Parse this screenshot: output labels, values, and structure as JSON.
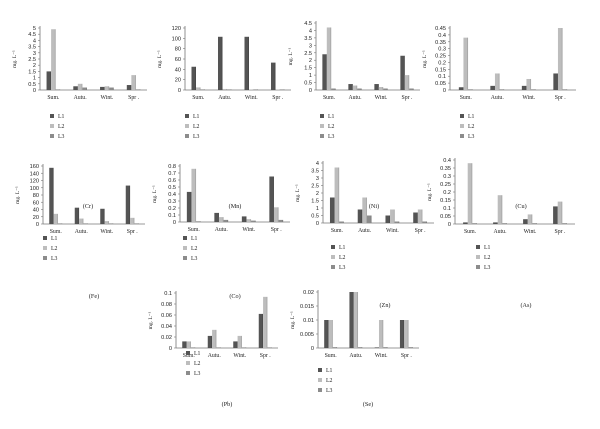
{
  "colors": {
    "L1": "#545454",
    "L2": "#bdbdbd",
    "L3": "#8c8c8c",
    "axis": "#777777",
    "text": "#222222"
  },
  "legend_labels": [
    "L1",
    "L2",
    "L3"
  ],
  "chart_data": [
    {
      "type": "bar",
      "title": "(Cr)",
      "ylabel": "mg. L⁻¹",
      "categories": [
        "Sum.",
        "Autu.",
        "Wint.",
        "Spr ."
      ],
      "ylim": [
        0,
        5
      ],
      "yticks": [
        0,
        0.5,
        1,
        1.5,
        2,
        2.5,
        3,
        3.5,
        4,
        4.5,
        5
      ],
      "series": [
        {
          "name": "L1",
          "values": [
            1.5,
            0.3,
            0.25,
            0.4
          ]
        },
        {
          "name": "L2",
          "values": [
            4.9,
            0.5,
            0.3,
            1.2
          ]
        },
        {
          "name": "L3",
          "values": [
            0.02,
            0.2,
            0.2,
            0.05
          ]
        }
      ]
    },
    {
      "type": "bar",
      "title": "(Mn)",
      "ylabel": "mg. L⁻¹",
      "categories": [
        "Sum.",
        "Autu.",
        "Wint.",
        "Spr ."
      ],
      "ylim": [
        0,
        120
      ],
      "yticks": [
        0,
        20,
        40,
        60,
        80,
        100,
        120
      ],
      "series": [
        {
          "name": "L1",
          "values": [
            45,
            103,
            103,
            53
          ]
        },
        {
          "name": "L2",
          "values": [
            5,
            2,
            1,
            1
          ]
        },
        {
          "name": "L3",
          "values": [
            0.5,
            0.3,
            0.3,
            0.3
          ]
        }
      ]
    },
    {
      "type": "bar",
      "title": "(Ni)",
      "ylabel": "mg. L⁻¹",
      "categories": [
        "Sum.",
        "Autu.",
        "Wint.",
        "Spr ."
      ],
      "ylim": [
        0,
        4.5
      ],
      "yticks": [
        0,
        0.5,
        1,
        1.5,
        2,
        2.5,
        3,
        3.5,
        4,
        4.5
      ],
      "series": [
        {
          "name": "L1",
          "values": [
            2.4,
            0.4,
            0.4,
            2.3
          ]
        },
        {
          "name": "L2",
          "values": [
            4.2,
            0.3,
            0.2,
            1.0
          ]
        },
        {
          "name": "L3",
          "values": [
            0.1,
            0.1,
            0.1,
            0.1
          ]
        }
      ]
    },
    {
      "type": "bar",
      "title": "(Cu)",
      "ylabel": "mg. L⁻¹",
      "categories": [
        "Sum.",
        "Autu.",
        "Wint.",
        "Spr ."
      ],
      "ylim": [
        0,
        0.45
      ],
      "yticks": [
        0,
        0.05,
        0.1,
        0.15,
        0.2,
        0.25,
        0.3,
        0.35,
        0.4,
        0.45
      ],
      "series": [
        {
          "name": "L1",
          "values": [
            0.02,
            0.03,
            0.03,
            0.12
          ]
        },
        {
          "name": "L2",
          "values": [
            0.38,
            0.12,
            0.08,
            0.45
          ]
        },
        {
          "name": "L3",
          "values": [
            0.005,
            0.005,
            0.005,
            0.005
          ]
        }
      ]
    },
    {
      "type": "bar",
      "title": "(Fe)",
      "ylabel": "mg. L⁻¹",
      "categories": [
        "Sum.",
        "Autu.",
        "Wint.",
        "Spr ."
      ],
      "ylim": [
        0,
        160
      ],
      "yticks": [
        0,
        20,
        40,
        60,
        80,
        100,
        120,
        140,
        160
      ],
      "series": [
        {
          "name": "L1",
          "values": [
            155,
            45,
            42,
            106
          ]
        },
        {
          "name": "L2",
          "values": [
            28,
            15,
            8,
            17
          ]
        },
        {
          "name": "L3",
          "values": [
            1,
            1,
            1,
            1
          ]
        }
      ]
    },
    {
      "type": "bar",
      "title": "(Co)",
      "ylabel": "mg. L⁻¹",
      "categories": [
        "Sum.",
        "Autu.",
        "Wint.",
        "Spr ."
      ],
      "ylim": [
        0,
        0.8
      ],
      "yticks": [
        0,
        0.1,
        0.2,
        0.3,
        0.4,
        0.5,
        0.6,
        0.7,
        0.8
      ],
      "series": [
        {
          "name": "L1",
          "values": [
            0.43,
            0.13,
            0.08,
            0.65
          ]
        },
        {
          "name": "L2",
          "values": [
            0.76,
            0.07,
            0.04,
            0.21
          ]
        },
        {
          "name": "L3",
          "values": [
            0.01,
            0.03,
            0.02,
            0.03
          ]
        }
      ]
    },
    {
      "type": "bar",
      "title": "(Zn)",
      "ylabel": "mg. L⁻¹",
      "categories": [
        "Sum.",
        "Autu.",
        "Wint.",
        "Spr ."
      ],
      "ylim": [
        0,
        4
      ],
      "yticks": [
        0,
        0.5,
        1,
        1.5,
        2,
        2.5,
        3,
        3.5,
        4
      ],
      "series": [
        {
          "name": "L1",
          "values": [
            1.7,
            0.9,
            0.5,
            0.7
          ]
        },
        {
          "name": "L2",
          "values": [
            3.7,
            1.7,
            0.9,
            0.9
          ]
        },
        {
          "name": "L3",
          "values": [
            0.1,
            0.5,
            0.1,
            0.1
          ]
        }
      ]
    },
    {
      "type": "bar",
      "title": "(As)",
      "ylabel": "mg. L⁻¹",
      "categories": [
        "Sum.",
        "Autu.",
        "Wint.",
        "Spr ."
      ],
      "ylim": [
        0,
        0.4
      ],
      "yticks": [
        0,
        0.05,
        0.1,
        0.15,
        0.2,
        0.25,
        0.3,
        0.35,
        0.4
      ],
      "series": [
        {
          "name": "L1",
          "values": [
            0.01,
            0.01,
            0.03,
            0.11
          ]
        },
        {
          "name": "L2",
          "values": [
            0.38,
            0.18,
            0.06,
            0.14
          ]
        },
        {
          "name": "L3",
          "values": [
            0.005,
            0.005,
            0.005,
            0.005
          ]
        }
      ]
    },
    {
      "type": "bar",
      "title": "(Pb)",
      "ylabel": "mg. L⁻¹",
      "categories": [
        "Sum.",
        "Autu.",
        "Wint.",
        "Spr ."
      ],
      "ylim": [
        0,
        0.1
      ],
      "yticks": [
        0,
        0.02,
        0.04,
        0.06,
        0.08,
        0.1
      ],
      "series": [
        {
          "name": "L1",
          "values": [
            0.012,
            0.022,
            0.012,
            0.062
          ]
        },
        {
          "name": "L2",
          "values": [
            0.012,
            0.033,
            0.022,
            0.093
          ]
        },
        {
          "name": "L3",
          "values": [
            0.001,
            0.001,
            0.001,
            0.001
          ]
        }
      ]
    },
    {
      "type": "bar",
      "title": "(Se)",
      "ylabel": "mg. L⁻¹",
      "categories": [
        "Sum.",
        "Autu.",
        "Wint.",
        "Spr ."
      ],
      "ylim": [
        0,
        0.02
      ],
      "yticks": [
        0,
        0.005,
        0.01,
        0.015,
        0.02
      ],
      "series": [
        {
          "name": "L1",
          "values": [
            0.01,
            0.02,
            0,
            0.01
          ]
        },
        {
          "name": "L2",
          "values": [
            0.01,
            0.02,
            0.01,
            0.01
          ]
        },
        {
          "name": "L3",
          "values": [
            0.0003,
            0.0003,
            0.0003,
            0.0003
          ]
        }
      ]
    }
  ]
}
